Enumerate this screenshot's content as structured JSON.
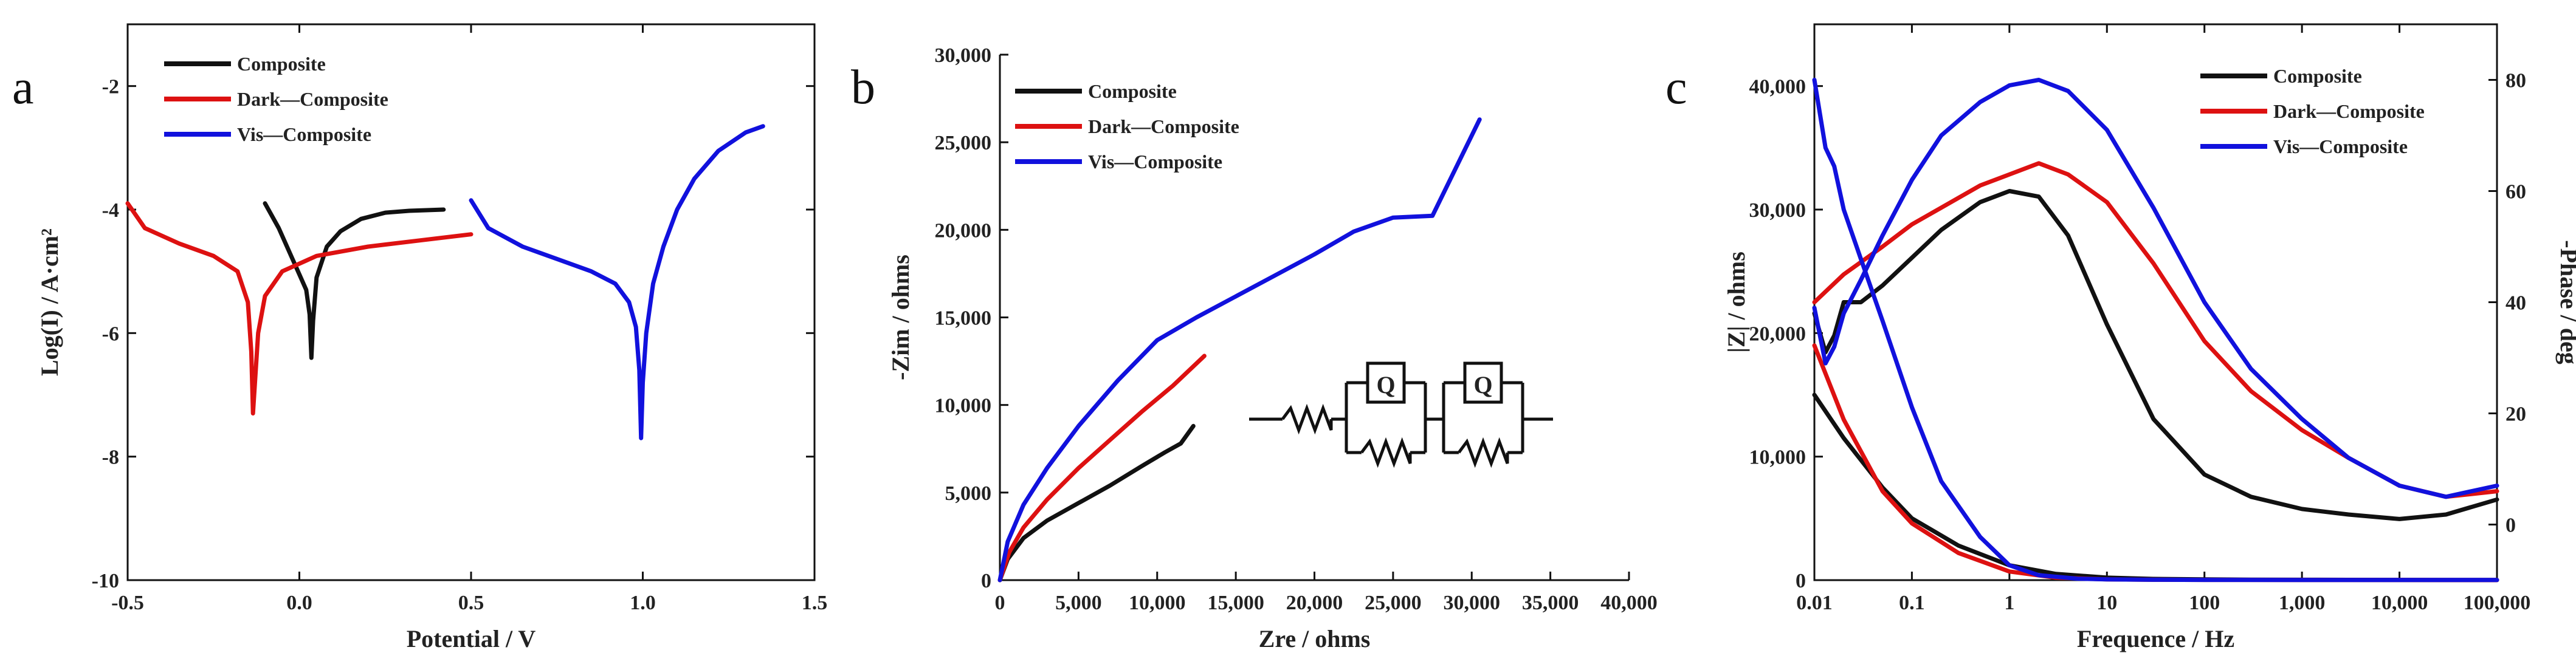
{
  "colors": {
    "composite": "#111111",
    "dark": "#dd1111",
    "vis": "#1111dd",
    "axis": "#111111"
  },
  "chart_data": [
    {
      "panel": "a",
      "type": "line",
      "xlabel": "Potential / V",
      "ylabel": "Log(I) / A·cm²",
      "xlim": [
        -0.5,
        1.5
      ],
      "ylim": [
        -10,
        -1
      ],
      "x_ticks": [
        "-0.5",
        "0.0",
        "0.5",
        "1.0",
        "1.5"
      ],
      "y_ticks": [
        "-10",
        "-8",
        "-6",
        "-4",
        "-2"
      ],
      "legend": [
        "Composite",
        "Dark—Composite",
        "Vis—Composite"
      ],
      "series": [
        {
          "name": "Composite",
          "color": "black",
          "x": [
            -0.1,
            -0.06,
            -0.02,
            0.0,
            0.02,
            0.03,
            0.035,
            0.04,
            0.05,
            0.08,
            0.12,
            0.18,
            0.25,
            0.32,
            0.42
          ],
          "y": [
            -3.9,
            -4.3,
            -4.8,
            -5.05,
            -5.3,
            -5.7,
            -6.4,
            -5.8,
            -5.1,
            -4.6,
            -4.35,
            -4.15,
            -4.05,
            -4.02,
            -4.0
          ]
        },
        {
          "name": "Dark—Composite",
          "color": "red",
          "x": [
            -0.5,
            -0.45,
            -0.35,
            -0.25,
            -0.18,
            -0.15,
            -0.14,
            -0.135,
            -0.12,
            -0.1,
            -0.05,
            0.05,
            0.2,
            0.35,
            0.5
          ],
          "y": [
            -3.9,
            -4.3,
            -4.55,
            -4.75,
            -5.0,
            -5.5,
            -6.3,
            -7.3,
            -6.0,
            -5.4,
            -5.0,
            -4.75,
            -4.6,
            -4.5,
            -4.4
          ]
        },
        {
          "name": "Vis—Composite",
          "color": "blue",
          "x": [
            0.5,
            0.55,
            0.65,
            0.75,
            0.85,
            0.92,
            0.96,
            0.98,
            0.99,
            0.995,
            1.0,
            1.01,
            1.03,
            1.06,
            1.1,
            1.15,
            1.22,
            1.3,
            1.35
          ],
          "y": [
            -3.85,
            -4.3,
            -4.6,
            -4.8,
            -5.0,
            -5.2,
            -5.5,
            -5.9,
            -6.6,
            -7.7,
            -6.8,
            -6.0,
            -5.2,
            -4.6,
            -4.0,
            -3.5,
            -3.05,
            -2.75,
            -2.65
          ]
        }
      ]
    },
    {
      "panel": "b",
      "type": "line",
      "xlabel": "Zre / ohms",
      "ylabel": "-Zim / ohms",
      "xlim": [
        0,
        40000
      ],
      "ylim": [
        0,
        30000
      ],
      "x_ticks": [
        "0",
        "5,000",
        "10,000",
        "15,000",
        "20,000",
        "25,000",
        "30,000",
        "35,000",
        "40,000"
      ],
      "y_ticks": [
        "0",
        "5,000",
        "10,000",
        "15,000",
        "20,000",
        "25,000",
        "30,000"
      ],
      "legend": [
        "Composite",
        "Dark—Composite",
        "Vis—Composite"
      ],
      "circuit_labels": [
        "Q",
        "Q"
      ],
      "series": [
        {
          "name": "Composite",
          "color": "black",
          "x": [
            0,
            500,
            1500,
            3000,
            5000,
            7000,
            9000,
            10500,
            11500,
            12300
          ],
          "y": [
            0,
            1200,
            2400,
            3400,
            4400,
            5400,
            6500,
            7300,
            7800,
            8800
          ]
        },
        {
          "name": "Dark—Composite",
          "color": "red",
          "x": [
            0,
            600,
            1500,
            3000,
            5000,
            7000,
            9000,
            11000,
            13000
          ],
          "y": [
            0,
            1600,
            3000,
            4600,
            6400,
            8000,
            9600,
            11100,
            12800
          ]
        },
        {
          "name": "Vis—Composite",
          "color": "blue",
          "x": [
            0,
            500,
            1500,
            3000,
            5000,
            7500,
            10000,
            12500,
            15000,
            17500,
            20000,
            22500,
            25000,
            27500,
            30500
          ],
          "y": [
            0,
            2200,
            4300,
            6400,
            8800,
            11400,
            13700,
            15000,
            16200,
            17400,
            18600,
            19900,
            20700,
            20800,
            26300
          ]
        }
      ]
    },
    {
      "panel": "c",
      "type": "line",
      "xlabel": "Frequence / Hz",
      "ylabel": "|Z| / ohms",
      "y2label": "-Phase / deg",
      "x_scale": "log",
      "xlim": [
        0.01,
        100000
      ],
      "ylim": [
        0,
        45000
      ],
      "y2lim": [
        -10,
        90
      ],
      "x_ticks": [
        "0.01",
        "0.1",
        "1",
        "10",
        "100",
        "1,000",
        "10,000",
        "100,000"
      ],
      "y_ticks": [
        "0",
        "10,000",
        "20,000",
        "30,000",
        "40,000"
      ],
      "y2_ticks": [
        "0",
        "20",
        "40",
        "60",
        "80"
      ],
      "legend": [
        "Composite",
        "Dark—Composite",
        "Vis—Composite"
      ],
      "series": [
        {
          "name": "Composite |Z|",
          "axis": "left",
          "color": "black",
          "x": [
            0.01,
            0.02,
            0.05,
            0.1,
            0.3,
            1,
            3,
            10,
            30,
            100,
            300,
            1000,
            3000,
            10000,
            30000,
            100000
          ],
          "y": [
            15000,
            11500,
            7500,
            5000,
            2800,
            1200,
            500,
            200,
            100,
            60,
            40,
            30,
            25,
            20,
            15,
            10
          ]
        },
        {
          "name": "Composite phase",
          "axis": "right",
          "color": "black",
          "x": [
            0.01,
            0.013,
            0.016,
            0.02,
            0.03,
            0.05,
            0.1,
            0.2,
            0.5,
            1,
            2,
            4,
            10,
            30,
            100,
            300,
            1000,
            3000,
            10000,
            30000,
            100000
          ],
          "y": [
            38,
            31,
            34,
            40,
            40,
            43,
            48,
            53,
            58,
            60,
            59,
            52,
            36,
            19,
            9,
            5,
            2.8,
            1.8,
            1,
            1.8,
            4.5
          ]
        },
        {
          "name": "Dark—Composite |Z|",
          "axis": "left",
          "color": "red",
          "x": [
            0.01,
            0.02,
            0.05,
            0.1,
            0.3,
            1,
            3,
            10,
            30,
            100,
            1000,
            10000,
            100000
          ],
          "y": [
            19000,
            13000,
            7200,
            4600,
            2200,
            700,
            200,
            60,
            30,
            20,
            10,
            8,
            5
          ]
        },
        {
          "name": "Dark—Composite phase",
          "axis": "right",
          "color": "red",
          "x": [
            0.01,
            0.02,
            0.05,
            0.1,
            0.2,
            0.5,
            1,
            2,
            4,
            10,
            30,
            100,
            300,
            1000,
            3000,
            10000,
            30000,
            100000
          ],
          "y": [
            40,
            45,
            50,
            54,
            57,
            61,
            63,
            65,
            63,
            58,
            47,
            33,
            24,
            17,
            12,
            7,
            5,
            6
          ]
        },
        {
          "name": "Vis—Composite |Z|",
          "axis": "left",
          "color": "blue",
          "x": [
            0.01,
            0.013,
            0.016,
            0.02,
            0.03,
            0.05,
            0.1,
            0.2,
            0.5,
            1,
            2,
            5,
            10,
            30,
            100,
            1000,
            10000,
            100000
          ],
          "y": [
            40500,
            35000,
            33500,
            30000,
            26000,
            21000,
            14000,
            8000,
            3500,
            1200,
            400,
            120,
            60,
            30,
            20,
            15,
            10,
            8
          ]
        },
        {
          "name": "Vis—Composite phase",
          "axis": "right",
          "color": "blue",
          "x": [
            0.01,
            0.013,
            0.016,
            0.02,
            0.03,
            0.05,
            0.1,
            0.2,
            0.5,
            1,
            2,
            4,
            10,
            30,
            100,
            300,
            1000,
            3000,
            10000,
            30000,
            100000
          ],
          "y": [
            39,
            29,
            32,
            38,
            44,
            52,
            62,
            70,
            76,
            79,
            80,
            78,
            71,
            57,
            40,
            28,
            19,
            12,
            7,
            5,
            7
          ]
        }
      ]
    }
  ]
}
